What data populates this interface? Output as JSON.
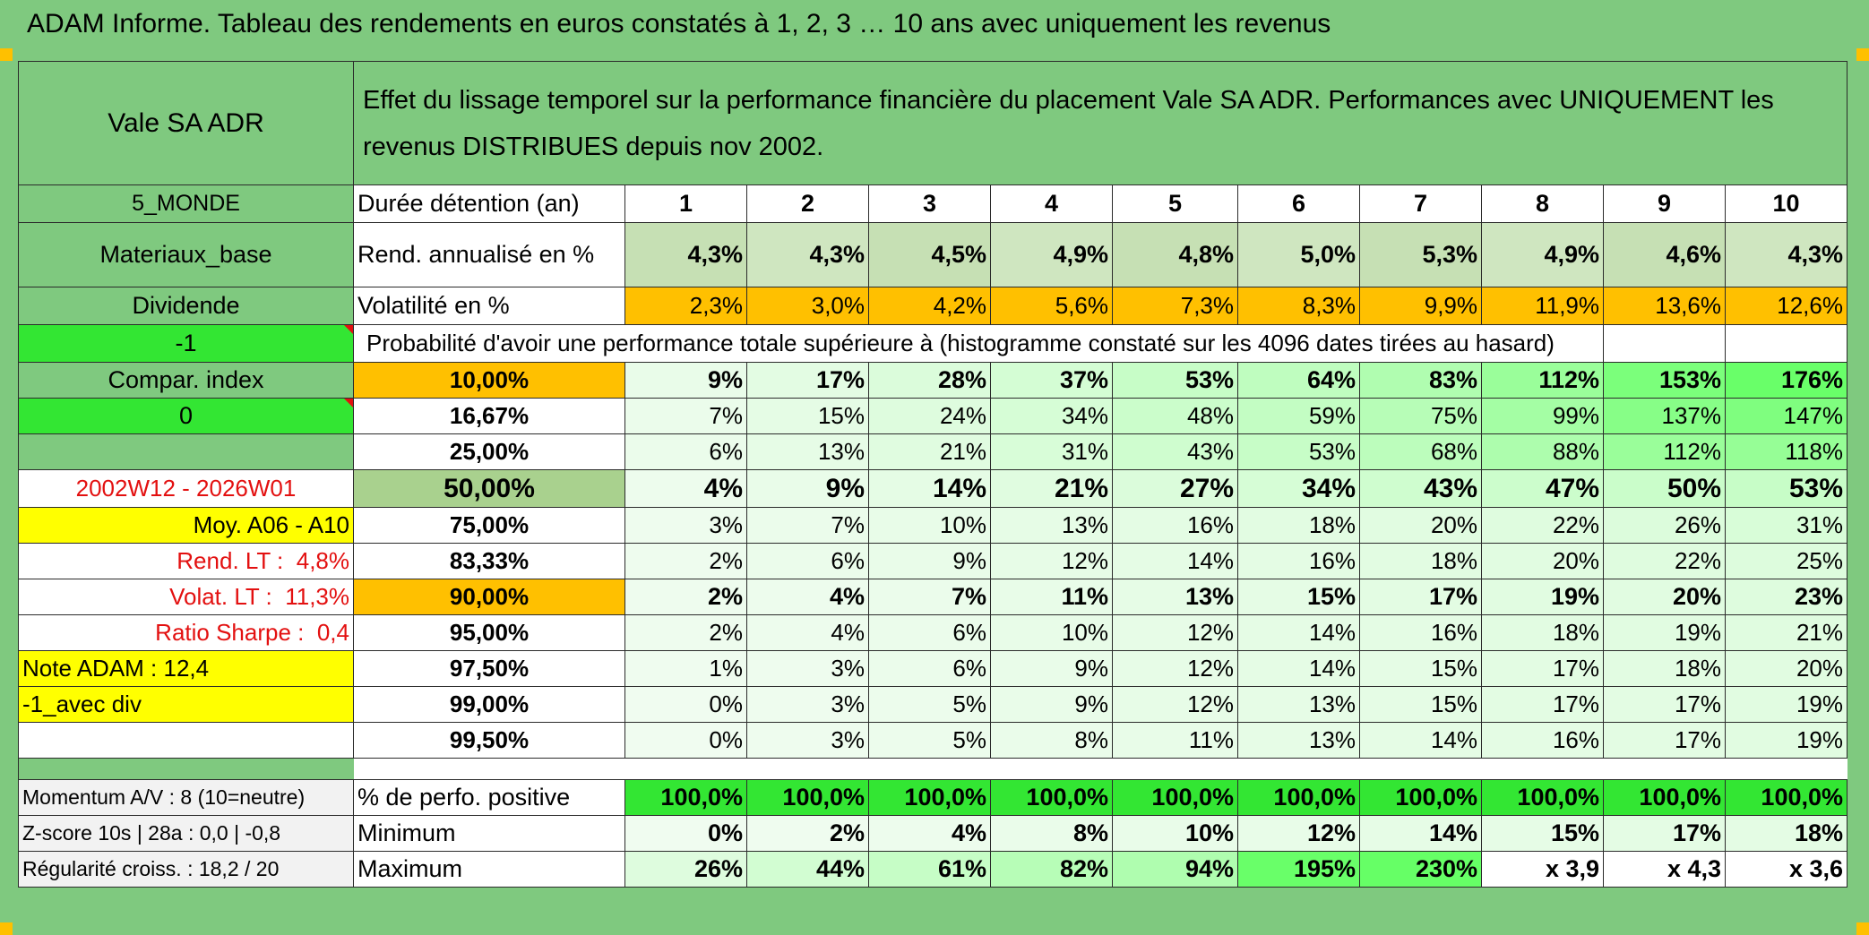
{
  "title": "ADAM Informe. Tableau des rendements en euros constatés à 1, 2, 3 … 10 ans avec uniquement les revenus",
  "fund_name": "Vale SA ADR",
  "description": "Effet du lissage temporel sur la performance financière du placement Vale SA ADR. Performances avec UNIQUEMENT les revenus DISTRIBUES depuis nov 2002.",
  "side": {
    "zone": "5_MONDE",
    "sector": "Materiaux_base",
    "dividend": "Dividende",
    "minus_one": "-1",
    "compar_index": "Compar. index",
    "zero": "0",
    "period": "2002W12 - 2026W01",
    "moy": "Moy. A06 - A10",
    "rend_lt_label": "Rend. LT :",
    "rend_lt_value": "4,8%",
    "volat_lt_label": "Volat. LT :",
    "volat_lt_value": "11,3%",
    "sharpe_label": "Ratio Sharpe :",
    "sharpe_value": "0,4",
    "note_adam": "Note ADAM : 12,4",
    "avec_div": "-1_avec div",
    "momentum": "Momentum A/V : 8 (10=neutre)",
    "zscore": "Z-score 10s | 28a : 0,0 | -0,8",
    "regularite": "Régularité croiss. : 18,2 / 20"
  },
  "labels": {
    "duree": "Durée détention (an)",
    "rend": "Rend. annualisé en %",
    "volat": "Volatilité en %",
    "proba": "Probabilité d'avoir une performance totale supérieure à (histogramme constaté sur les 4096 dates tirées au hasard)",
    "positive": "% de perfo. positive",
    "minimum": "Minimum",
    "maximum": "Maximum"
  },
  "years": [
    "1",
    "2",
    "3",
    "4",
    "5",
    "6",
    "7",
    "8",
    "9",
    "10"
  ],
  "rendement": [
    "4,3%",
    "4,3%",
    "4,5%",
    "4,9%",
    "4,8%",
    "5,0%",
    "5,3%",
    "4,9%",
    "4,6%",
    "4,3%"
  ],
  "volatilite": [
    "2,3%",
    "3,0%",
    "4,2%",
    "5,6%",
    "7,3%",
    "8,3%",
    "9,9%",
    "11,9%",
    "13,6%",
    "12,6%"
  ],
  "percentiles": [
    {
      "pct": "10,00%",
      "vals": [
        "9%",
        "17%",
        "28%",
        "37%",
        "53%",
        "64%",
        "83%",
        "112%",
        "153%",
        "176%"
      ]
    },
    {
      "pct": "16,67%",
      "vals": [
        "7%",
        "15%",
        "24%",
        "34%",
        "48%",
        "59%",
        "75%",
        "99%",
        "137%",
        "147%"
      ]
    },
    {
      "pct": "25,00%",
      "vals": [
        "6%",
        "13%",
        "21%",
        "31%",
        "43%",
        "53%",
        "68%",
        "88%",
        "112%",
        "118%"
      ]
    },
    {
      "pct": "50,00%",
      "vals": [
        "4%",
        "9%",
        "14%",
        "21%",
        "27%",
        "34%",
        "43%",
        "47%",
        "50%",
        "53%"
      ]
    },
    {
      "pct": "75,00%",
      "vals": [
        "3%",
        "7%",
        "10%",
        "13%",
        "16%",
        "18%",
        "20%",
        "22%",
        "26%",
        "31%"
      ]
    },
    {
      "pct": "83,33%",
      "vals": [
        "2%",
        "6%",
        "9%",
        "12%",
        "14%",
        "16%",
        "18%",
        "20%",
        "22%",
        "25%"
      ]
    },
    {
      "pct": "90,00%",
      "vals": [
        "2%",
        "4%",
        "7%",
        "11%",
        "13%",
        "15%",
        "17%",
        "19%",
        "20%",
        "23%"
      ]
    },
    {
      "pct": "95,00%",
      "vals": [
        "2%",
        "4%",
        "6%",
        "10%",
        "12%",
        "14%",
        "16%",
        "18%",
        "19%",
        "21%"
      ]
    },
    {
      "pct": "97,50%",
      "vals": [
        "1%",
        "3%",
        "6%",
        "9%",
        "12%",
        "14%",
        "15%",
        "17%",
        "18%",
        "20%"
      ]
    },
    {
      "pct": "99,00%",
      "vals": [
        "0%",
        "3%",
        "5%",
        "9%",
        "12%",
        "13%",
        "15%",
        "17%",
        "17%",
        "19%"
      ]
    },
    {
      "pct": "99,50%",
      "vals": [
        "0%",
        "3%",
        "5%",
        "8%",
        "11%",
        "13%",
        "14%",
        "16%",
        "17%",
        "19%"
      ]
    }
  ],
  "positive": [
    "100,0%",
    "100,0%",
    "100,0%",
    "100,0%",
    "100,0%",
    "100,0%",
    "100,0%",
    "100,0%",
    "100,0%",
    "100,0%"
  ],
  "minimum": [
    "0%",
    "2%",
    "4%",
    "8%",
    "10%",
    "12%",
    "14%",
    "15%",
    "17%",
    "18%"
  ],
  "maximum": [
    "26%",
    "44%",
    "61%",
    "82%",
    "94%",
    "195%",
    "230%",
    "x 3,9",
    "x 4,3",
    "x 3,6"
  ],
  "colors": {
    "frame_green": "#7fc97f",
    "bright_green": "#33e633",
    "orange": "#ffc000",
    "yellow": "#ffff00",
    "red_text": "#e31010",
    "rend_bg": "#c6e0b4",
    "median_bg": "#a9d18e"
  }
}
